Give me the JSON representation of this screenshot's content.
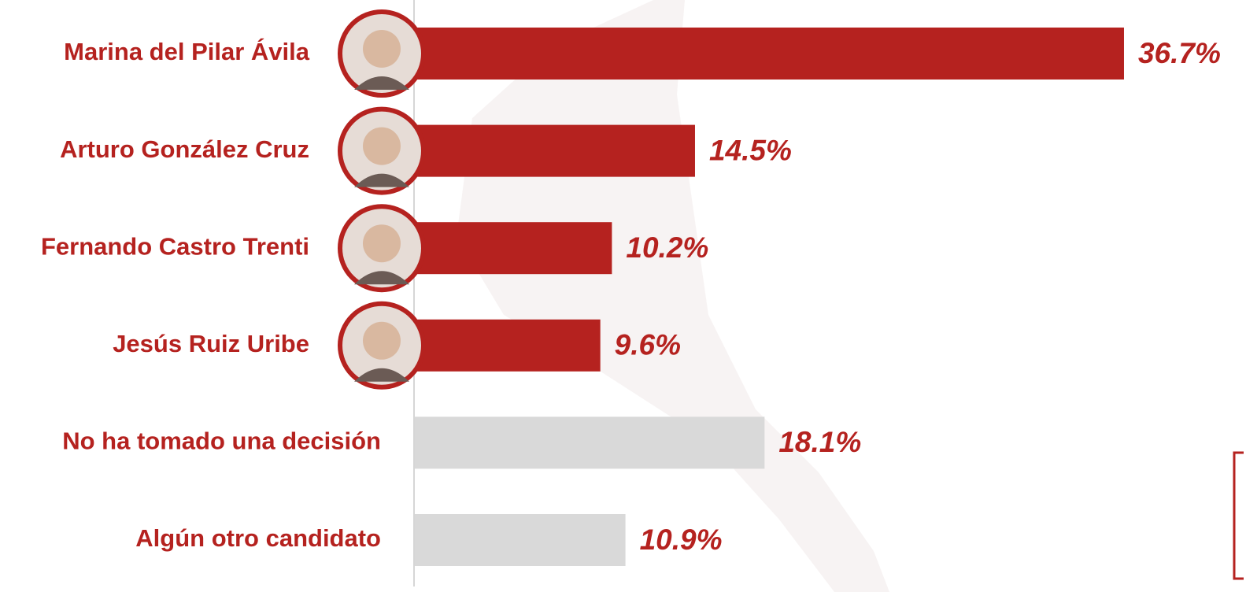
{
  "chart_data": {
    "type": "bar",
    "orientation": "horizontal",
    "categories": [
      "Marina del Pilar Ávila",
      "Arturo González Cruz",
      "Fernando Castro Trenti",
      "Jesús Ruiz Uribe",
      "No ha tomado una decisión",
      "Algún otro candidato"
    ],
    "values": [
      36.7,
      14.5,
      10.2,
      9.6,
      18.1,
      10.9
    ],
    "value_labels": [
      "36.7%",
      "14.5%",
      "10.2%",
      "9.6%",
      "18.1%",
      "10.9%"
    ],
    "colors": [
      "#b5221f",
      "#b5221f",
      "#b5221f",
      "#b5221f",
      "#d9d9d9",
      "#d9d9d9"
    ],
    "xlim": [
      0,
      40
    ]
  }
}
